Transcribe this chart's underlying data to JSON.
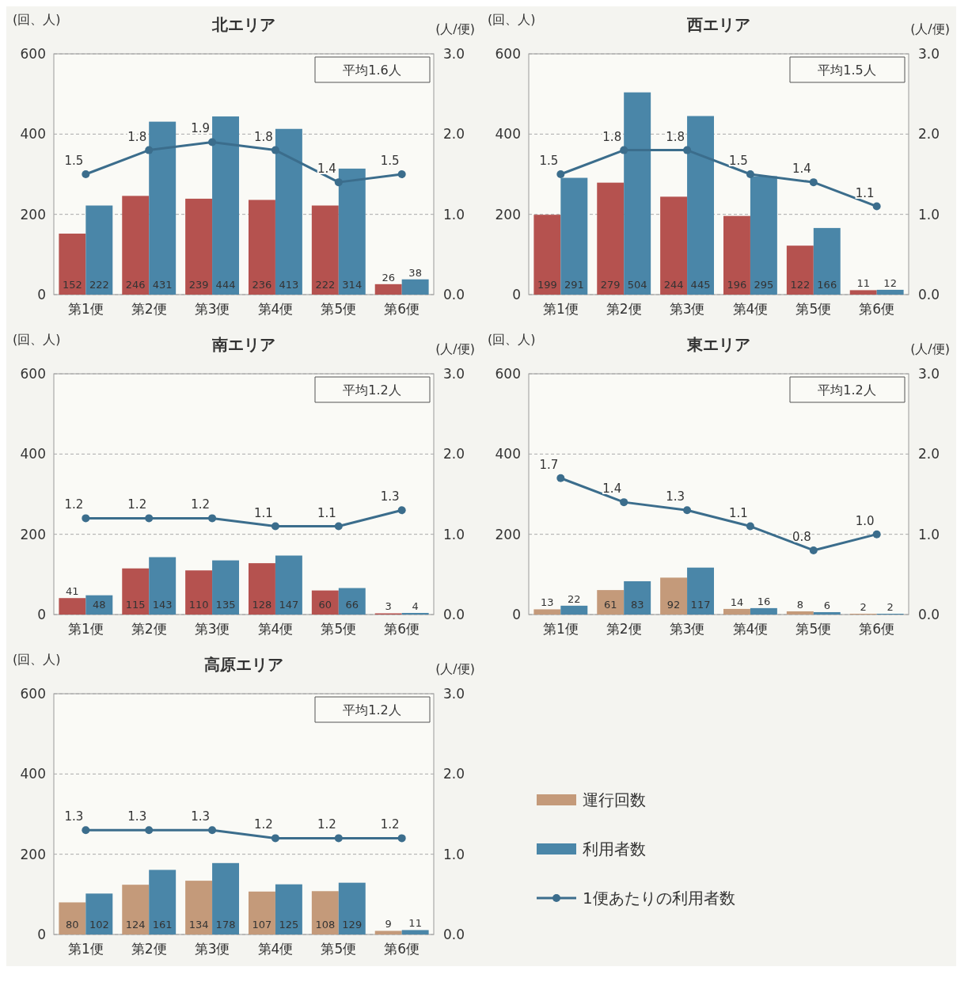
{
  "chart_data": [
    {
      "type": "bar",
      "title": "北エリア",
      "ylabel": "(回、人)",
      "y2label": "(人/便)",
      "annotations": [
        "平均1.6人"
      ],
      "categories": [
        "第1便",
        "第2便",
        "第3便",
        "第4便",
        "第5便",
        "第6便"
      ],
      "ylim": [
        0,
        600
      ],
      "yticks": [
        0,
        200,
        400,
        600
      ],
      "y2lim": [
        0,
        3
      ],
      "y2ticks": [
        {
          "value": 0,
          "label": "0.0"
        },
        {
          "value": 1,
          "label": "1.0"
        },
        {
          "value": 2,
          "label": "2.0"
        },
        {
          "value": 3,
          "label": "3.0"
        }
      ],
      "grid": "y",
      "marker": "circle",
      "line_style": "solid",
      "legend": false,
      "series": [
        {
          "color": "#b5524f",
          "values": [
            152,
            246,
            239,
            236,
            222,
            26
          ],
          "value_labels": [
            "152",
            "246",
            "239",
            "236",
            "222",
            "26"
          ]
        },
        {
          "color": "#4a86a8",
          "values": [
            222,
            431,
            444,
            413,
            314,
            38
          ],
          "value_labels": [
            "222",
            "431",
            "444",
            "413",
            "314",
            "38"
          ]
        },
        {
          "type": "line",
          "axis": "y2",
          "color": "#3b6d8c",
          "values": [
            1.5,
            1.8,
            1.9,
            1.8,
            1.4,
            1.5
          ],
          "value_labels": [
            "1.5",
            "1.8",
            "1.9",
            "1.8",
            "1.4",
            "1.5"
          ]
        }
      ]
    },
    {
      "type": "bar",
      "title": "西エリア",
      "ylabel": "(回、人)",
      "y2label": "(人/便)",
      "annotations": [
        "平均1.5人"
      ],
      "categories": [
        "第1便",
        "第2便",
        "第3便",
        "第4便",
        "第5便",
        "第6便"
      ],
      "ylim": [
        0,
        600
      ],
      "yticks": [
        0,
        200,
        400,
        600
      ],
      "y2lim": [
        0,
        3
      ],
      "y2ticks": [
        {
          "value": 0,
          "label": "0.0"
        },
        {
          "value": 1,
          "label": "1.0"
        },
        {
          "value": 2,
          "label": "2.0"
        },
        {
          "value": 3,
          "label": "3.0"
        }
      ],
      "grid": "y",
      "marker": "circle",
      "line_style": "solid",
      "legend": false,
      "series": [
        {
          "color": "#b5524f",
          "values": [
            199,
            279,
            244,
            196,
            122,
            11
          ],
          "value_labels": [
            "199",
            "279",
            "244",
            "196",
            "122",
            "11"
          ]
        },
        {
          "color": "#4a86a8",
          "values": [
            291,
            504,
            445,
            295,
            166,
            12
          ],
          "value_labels": [
            "291",
            "504",
            "445",
            "295",
            "166",
            "12"
          ]
        },
        {
          "type": "line",
          "axis": "y2",
          "color": "#3b6d8c",
          "values": [
            1.5,
            1.8,
            1.8,
            1.5,
            1.4,
            1.1
          ],
          "value_labels": [
            "1.5",
            "1.8",
            "1.8",
            "1.5",
            "1.4",
            "1.1"
          ]
        }
      ]
    },
    {
      "type": "bar",
      "title": "南エリア",
      "ylabel": "(回、人)",
      "y2label": "(人/便)",
      "annotations": [
        "平均1.2人"
      ],
      "categories": [
        "第1便",
        "第2便",
        "第3便",
        "第4便",
        "第5便",
        "第6便"
      ],
      "ylim": [
        0,
        600
      ],
      "yticks": [
        0,
        200,
        400,
        600
      ],
      "y2lim": [
        0,
        3
      ],
      "y2ticks": [
        {
          "value": 0,
          "label": "0.0"
        },
        {
          "value": 1,
          "label": "1.0"
        },
        {
          "value": 2,
          "label": "2.0"
        },
        {
          "value": 3,
          "label": "3.0"
        }
      ],
      "grid": "y",
      "marker": "circle",
      "line_style": "solid",
      "legend": false,
      "series": [
        {
          "color": "#b5524f",
          "values": [
            41,
            115,
            110,
            128,
            60,
            3
          ],
          "value_labels": [
            "41",
            "115",
            "110",
            "128",
            "60",
            "3"
          ]
        },
        {
          "color": "#4a86a8",
          "values": [
            48,
            143,
            135,
            147,
            66,
            4
          ],
          "value_labels": [
            "48",
            "143",
            "135",
            "147",
            "66",
            "4"
          ]
        },
        {
          "type": "line",
          "axis": "y2",
          "color": "#3b6d8c",
          "values": [
            1.2,
            1.2,
            1.2,
            1.1,
            1.1,
            1.3
          ],
          "value_labels": [
            "1.2",
            "1.2",
            "1.2",
            "1.1",
            "1.1",
            "1.3"
          ]
        }
      ]
    },
    {
      "type": "bar",
      "title": "東エリア",
      "ylabel": "(回、人)",
      "y2label": "(人/便)",
      "annotations": [
        "平均1.2人"
      ],
      "categories": [
        "第1便",
        "第2便",
        "第3便",
        "第4便",
        "第5便",
        "第6便"
      ],
      "ylim": [
        0,
        600
      ],
      "yticks": [
        0,
        200,
        400,
        600
      ],
      "y2lim": [
        0,
        3
      ],
      "y2ticks": [
        {
          "value": 0,
          "label": "0.0"
        },
        {
          "value": 1,
          "label": "1.0"
        },
        {
          "value": 2,
          "label": "2.0"
        },
        {
          "value": 3,
          "label": "3.0"
        }
      ],
      "grid": "y",
      "marker": "circle",
      "line_style": "solid",
      "legend": false,
      "series": [
        {
          "color": "#c49a7a",
          "values": [
            13,
            61,
            92,
            14,
            8,
            2
          ],
          "value_labels": [
            "13",
            "61",
            "92",
            "14",
            "8",
            "2"
          ]
        },
        {
          "color": "#4a86a8",
          "values": [
            22,
            83,
            117,
            16,
            6,
            2
          ],
          "value_labels": [
            "22",
            "83",
            "117",
            "16",
            "6",
            "2"
          ]
        },
        {
          "type": "line",
          "axis": "y2",
          "color": "#3b6d8c",
          "values": [
            1.7,
            1.4,
            1.3,
            1.1,
            0.8,
            1.0
          ],
          "value_labels": [
            "1.7",
            "1.4",
            "1.3",
            "1.1",
            "0.8",
            "1.0"
          ]
        }
      ]
    },
    {
      "type": "bar",
      "title": "高原エリア",
      "ylabel": "(回、人)",
      "y2label": "(人/便)",
      "annotations": [
        "平均1.2人"
      ],
      "categories": [
        "第1便",
        "第2便",
        "第3便",
        "第4便",
        "第5便",
        "第6便"
      ],
      "ylim": [
        0,
        600
      ],
      "yticks": [
        0,
        200,
        400,
        600
      ],
      "y2lim": [
        0,
        3
      ],
      "y2ticks": [
        {
          "value": 0,
          "label": "0.0"
        },
        {
          "value": 1,
          "label": "1.0"
        },
        {
          "value": 2,
          "label": "2.0"
        },
        {
          "value": 3,
          "label": "3.0"
        }
      ],
      "grid": "y",
      "marker": "circle",
      "line_style": "solid",
      "legend": "right",
      "series": [
        {
          "name": "運行回数",
          "color": "#c49a7a",
          "values": [
            80,
            124,
            134,
            107,
            108,
            9
          ],
          "value_labels": [
            "80",
            "124",
            "134",
            "107",
            "108",
            "9"
          ]
        },
        {
          "name": "利用者数",
          "color": "#4a86a8",
          "values": [
            102,
            161,
            178,
            125,
            129,
            11
          ],
          "value_labels": [
            "102",
            "161",
            "178",
            "125",
            "129",
            "11"
          ]
        },
        {
          "type": "line",
          "name": "1便あたりの利用者数",
          "axis": "y2",
          "color": "#3b6d8c",
          "values": [
            1.3,
            1.3,
            1.3,
            1.2,
            1.2,
            1.2
          ],
          "value_labels": [
            "1.3",
            "1.3",
            "1.3",
            "1.2",
            "1.2",
            "1.2"
          ]
        }
      ]
    }
  ]
}
